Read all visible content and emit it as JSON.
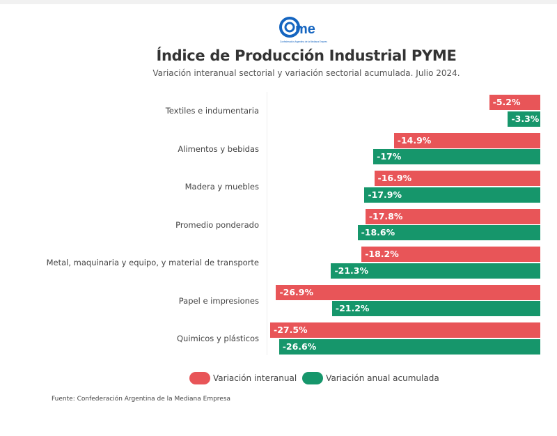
{
  "header": {
    "logo_text": "came",
    "logo_subtext": "Confederación Argentina de la Mediana Empresa",
    "brand_color": "#1565c0"
  },
  "chart_data": {
    "type": "bar",
    "orientation": "horizontal",
    "title": "Índice de Producción Industrial PYME",
    "subtitle": "Variación interanual sectorial y variación sectorial acumulada. Julio 2024.",
    "categories": [
      "Textiles e indumentaria",
      "Alimentos y bebidas",
      "Madera y muebles",
      "Promedio ponderado",
      "Metal, maquinaria y equipo, y material de transporte",
      "Papel e impresiones",
      "Quimicos y plásticos"
    ],
    "series": [
      {
        "name": "Variación interanual",
        "color": "#e85558",
        "values": [
          -5.2,
          -14.9,
          -16.9,
          -17.8,
          -18.2,
          -26.9,
          -27.5
        ],
        "labels": [
          "-5.2%",
          "-14.9%",
          "-16.9%",
          "-17.8%",
          "-18.2%",
          "-26.9%",
          "-27.5%"
        ]
      },
      {
        "name": "Variación anual acumulada",
        "color": "#16966b",
        "values": [
          -3.3,
          -17,
          -17.9,
          -18.6,
          -21.3,
          -21.2,
          -26.6
        ],
        "labels": [
          "-3.3%",
          "-17%",
          "-17.9%",
          "-18.6%",
          "-21.3%",
          "-21.2%",
          "-26.6%"
        ]
      }
    ],
    "xlim": [
      -27.5,
      0
    ],
    "legend_position": "bottom",
    "grid": true
  },
  "source": "Fuente: Confederación Argentina de la Mediana Empresa"
}
